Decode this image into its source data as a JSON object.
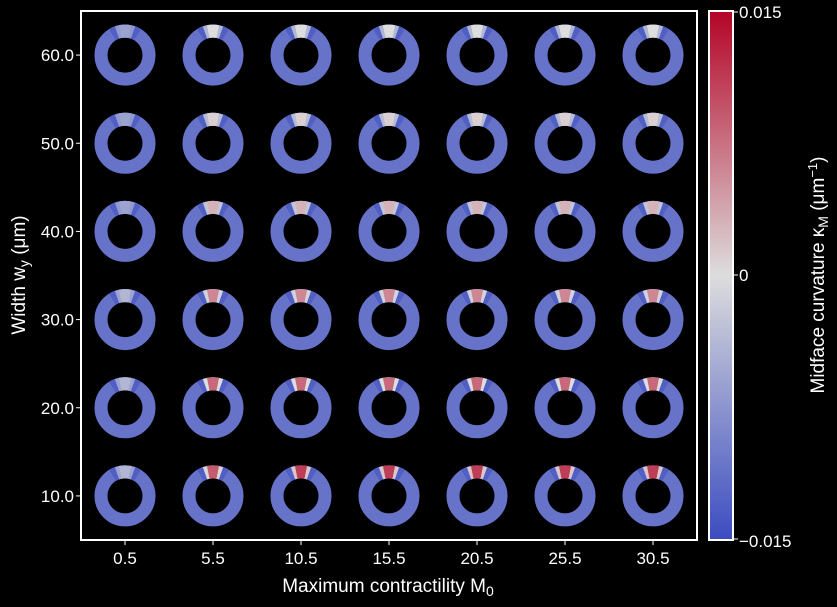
{
  "chart_data": {
    "type": "heatmap",
    "xlabel": "Maximum contractility M",
    "xlabel_sub": "0",
    "ylabel": "Width w",
    "ylabel_sub": "y",
    "ylabel_unit": " (μm)",
    "x_ticks": [
      "0.5",
      "5.5",
      "10.5",
      "15.5",
      "20.5",
      "25.5",
      "30.5"
    ],
    "y_ticks": [
      "60.0",
      "50.0",
      "40.0",
      "30.0",
      "20.0",
      "10.0"
    ],
    "x_values": [
      0.5,
      5.5,
      10.5,
      15.5,
      20.5,
      25.5,
      30.5
    ],
    "y_values": [
      60.0,
      50.0,
      40.0,
      30.0,
      20.0,
      10.0
    ],
    "colorbar": {
      "label_main": "Midface curvature κ",
      "label_sub": "M",
      "label_unit_open": " (μm",
      "label_unit_exp": "−1",
      "label_unit_close": ")",
      "ticks": [
        "0.015",
        "0",
        "−0.015"
      ],
      "min": -0.015,
      "max": 0.015,
      "colors": [
        "#3b4cc0",
        "#dddddd",
        "#b40426"
      ]
    },
    "background_value": -0.011,
    "top_patch_values": [
      [
        -0.006,
        0.0,
        0.0,
        0.0,
        0.0,
        0.0,
        0.0
      ],
      [
        -0.006,
        0.001,
        0.001,
        0.001,
        0.001,
        0.001,
        0.001
      ],
      [
        -0.006,
        0.003,
        0.003,
        0.003,
        0.003,
        0.003,
        0.003
      ],
      [
        -0.004,
        0.006,
        0.006,
        0.006,
        0.006,
        0.006,
        0.006
      ],
      [
        -0.004,
        0.008,
        0.008,
        0.008,
        0.008,
        0.008,
        0.008
      ],
      [
        -0.004,
        0.009,
        0.011,
        0.011,
        0.011,
        0.011,
        0.011
      ]
    ]
  }
}
